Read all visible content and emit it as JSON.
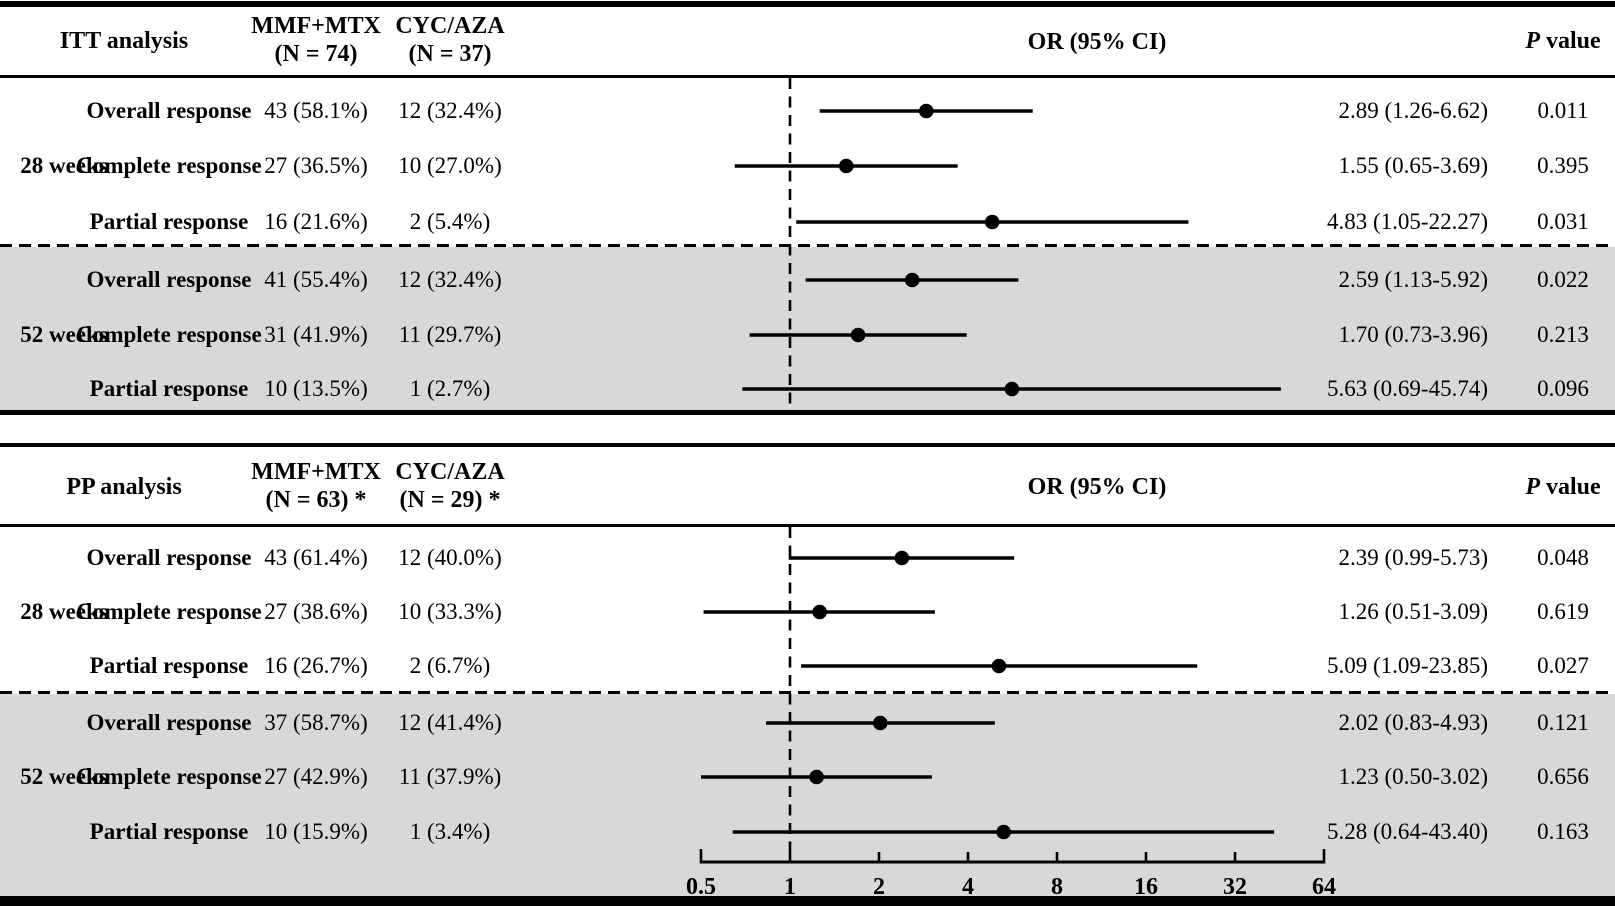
{
  "chart_data": {
    "type": "forest",
    "x_axis": {
      "scale": "log2",
      "tick_values": [
        0.5,
        1,
        2,
        4,
        8,
        16,
        32,
        64
      ],
      "tick_labels": [
        "0.5",
        "1",
        "2",
        "4",
        "8",
        "16",
        "32",
        "64"
      ],
      "range": [
        0.5,
        64
      ],
      "reference_value": 1
    },
    "colors": {
      "background": "#ffffff",
      "shaded_band": "#d8d8d8",
      "marker": "#000000",
      "text": "#000000"
    },
    "panels": [
      {
        "title": "ITT analysis",
        "columns": {
          "group1_line1": "MMF+MTX",
          "group1_line2": "(N = 74)",
          "group2_line1": "CYC/AZA",
          "group2_line2": "(N = 37)",
          "or_header": "OR (95% CI)",
          "p_header_italic": "P",
          "p_header_rest": " value"
        },
        "groups": [
          {
            "label": "28 weeks",
            "shaded": false,
            "rows": [
              {
                "response": "Overall response",
                "mmf_mtx": "43 (58.1%)",
                "cyc_aza": "12 (32.4%)",
                "or": 2.89,
                "ci_low": 1.26,
                "ci_high": 6.62,
                "or_ci_text": "2.89 (1.26-6.62)",
                "p_value": "0.011"
              },
              {
                "response": "Complete response",
                "mmf_mtx": "27 (36.5%)",
                "cyc_aza": "10 (27.0%)",
                "or": 1.55,
                "ci_low": 0.65,
                "ci_high": 3.69,
                "or_ci_text": "1.55 (0.65-3.69)",
                "p_value": "0.395"
              },
              {
                "response": "Partial response",
                "mmf_mtx": "16 (21.6%)",
                "cyc_aza": "2 (5.4%)",
                "or": 4.83,
                "ci_low": 1.05,
                "ci_high": 22.27,
                "or_ci_text": "4.83 (1.05-22.27)",
                "p_value": "0.031"
              }
            ]
          },
          {
            "label": "52 weeks",
            "shaded": true,
            "rows": [
              {
                "response": "Overall response",
                "mmf_mtx": "41 (55.4%)",
                "cyc_aza": "12 (32.4%)",
                "or": 2.59,
                "ci_low": 1.13,
                "ci_high": 5.92,
                "or_ci_text": "2.59 (1.13-5.92)",
                "p_value": "0.022"
              },
              {
                "response": "Complete response",
                "mmf_mtx": "31 (41.9%)",
                "cyc_aza": "11 (29.7%)",
                "or": 1.7,
                "ci_low": 0.73,
                "ci_high": 3.96,
                "or_ci_text": "1.70 (0.73-3.96)",
                "p_value": "0.213"
              },
              {
                "response": "Partial response",
                "mmf_mtx": "10 (13.5%)",
                "cyc_aza": "1 (2.7%)",
                "or": 5.63,
                "ci_low": 0.69,
                "ci_high": 45.74,
                "or_ci_text": "5.63 (0.69-45.74)",
                "p_value": "0.096"
              }
            ]
          }
        ]
      },
      {
        "title": "PP analysis",
        "columns": {
          "group1_line1": "MMF+MTX",
          "group1_line2": "(N = 63) *",
          "group2_line1": "CYC/AZA",
          "group2_line2": "(N = 29) *",
          "or_header": "OR (95% CI)",
          "p_header_italic": "P",
          "p_header_rest": " value"
        },
        "groups": [
          {
            "label": "28 weeks",
            "shaded": false,
            "rows": [
              {
                "response": "Overall response",
                "mmf_mtx": "43 (61.4%)",
                "cyc_aza": "12 (40.0%)",
                "or": 2.39,
                "ci_low": 0.99,
                "ci_high": 5.73,
                "or_ci_text": "2.39 (0.99-5.73)",
                "p_value": "0.048"
              },
              {
                "response": "Complete response",
                "mmf_mtx": "27 (38.6%)",
                "cyc_aza": "10 (33.3%)",
                "or": 1.26,
                "ci_low": 0.51,
                "ci_high": 3.09,
                "or_ci_text": "1.26 (0.51-3.09)",
                "p_value": "0.619"
              },
              {
                "response": "Partial response",
                "mmf_mtx": "16 (26.7%)",
                "cyc_aza": "2 (6.7%)",
                "or": 5.09,
                "ci_low": 1.09,
                "ci_high": 23.85,
                "or_ci_text": "5.09 (1.09-23.85)",
                "p_value": "0.027"
              }
            ]
          },
          {
            "label": "52 weeks",
            "shaded": true,
            "rows": [
              {
                "response": "Overall response",
                "mmf_mtx": "37 (58.7%)",
                "cyc_aza": "12 (41.4%)",
                "or": 2.02,
                "ci_low": 0.83,
                "ci_high": 4.93,
                "or_ci_text": "2.02 (0.83-4.93)",
                "p_value": "0.121"
              },
              {
                "response": "Complete response",
                "mmf_mtx": "27 (42.9%)",
                "cyc_aza": "11 (37.9%)",
                "or": 1.23,
                "ci_low": 0.5,
                "ci_high": 3.02,
                "or_ci_text": "1.23 (0.50-3.02)",
                "p_value": "0.656"
              },
              {
                "response": "Partial response",
                "mmf_mtx": "10 (15.9%)",
                "cyc_aza": "1 (3.4%)",
                "or": 5.28,
                "ci_low": 0.64,
                "ci_high": 43.4,
                "or_ci_text": "5.28 (0.64-43.40)",
                "p_value": "0.163"
              }
            ]
          }
        ]
      }
    ]
  }
}
